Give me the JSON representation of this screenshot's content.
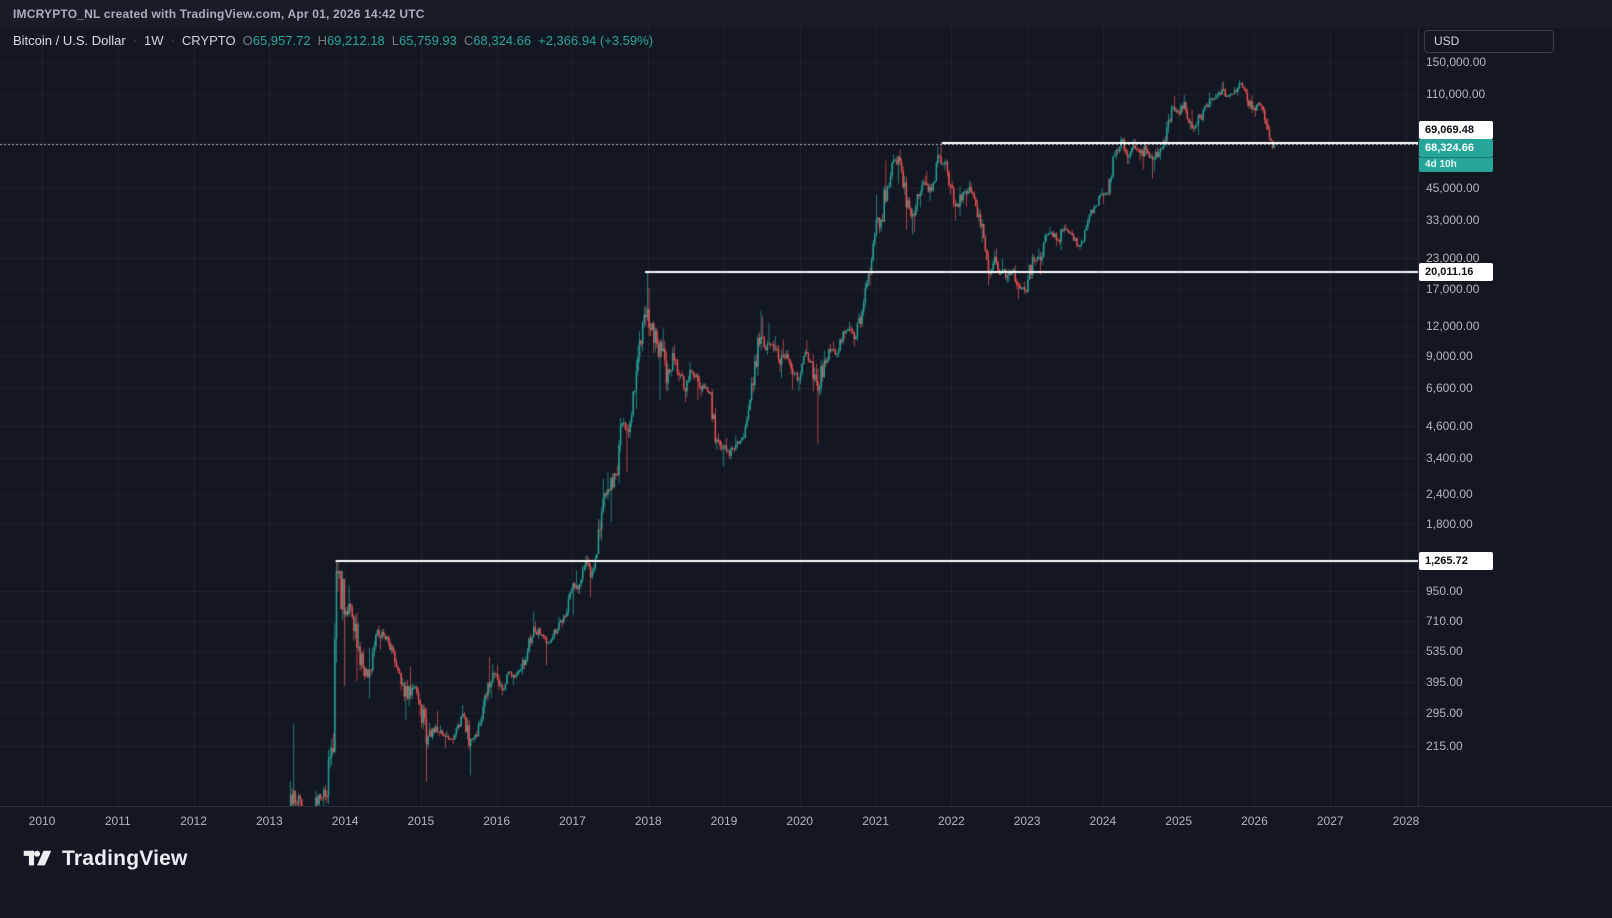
{
  "top_bar": {
    "attribution": "IMCRYPTO_NL created with TradingView.com, Apr 01, 2026 14:42 UTC"
  },
  "legend": {
    "symbol": "Bitcoin / U.S. Dollar",
    "separator": "·",
    "interval": "1W",
    "exchange": "CRYPTO",
    "ohlc": [
      {
        "k": "O",
        "v": "65,957.72"
      },
      {
        "k": "H",
        "v": "69,212.18"
      },
      {
        "k": "L",
        "v": "65,759.93"
      },
      {
        "k": "C",
        "v": "68,324.66"
      }
    ],
    "change": "+2,366.94 (+3.59%)"
  },
  "currency_button": {
    "label": "USD"
  },
  "logo": {
    "text": "TradingView"
  },
  "colors": {
    "bg": "#131722",
    "panel": "#171c27",
    "up": "#26a69a",
    "down": "#ef5350",
    "grid": "rgba(240,243,250,0.06)",
    "axis_text": "#b2b5be",
    "muted": "#787b86",
    "white_line": "#ffffff",
    "last_price_line": "rgba(205,210,220,0.85)"
  },
  "price_badges": [
    {
      "text": "69,069.48",
      "value": 69069.48,
      "style": "white"
    },
    {
      "text": "68,324.66",
      "value": 68324.66,
      "style": "accent"
    },
    {
      "text": "4d 10h",
      "value": 68324.66,
      "style": "countdown"
    },
    {
      "text": "20,011.16",
      "value": 20011.16,
      "style": "white"
    },
    {
      "text": "1,265.72",
      "value": 1265.72,
      "style": "white"
    }
  ],
  "chart_data": {
    "type": "candlestick",
    "title": "Bitcoin / U.S. Dollar · 1W · CRYPTO",
    "scale": "log",
    "legend_position": "top-left",
    "grid": true,
    "x_ticks": [
      {
        "t": "2010",
        "v": 2010
      },
      {
        "t": "2011",
        "v": 2011
      },
      {
        "t": "2012",
        "v": 2012
      },
      {
        "t": "2013",
        "v": 2013
      },
      {
        "t": "2014",
        "v": 2014
      },
      {
        "t": "2015",
        "v": 2015
      },
      {
        "t": "2016",
        "v": 2016
      },
      {
        "t": "2017",
        "v": 2017
      },
      {
        "t": "2018",
        "v": 2018
      },
      {
        "t": "2019",
        "v": 2019
      },
      {
        "t": "2020",
        "v": 2020
      },
      {
        "t": "2021",
        "v": 2021
      },
      {
        "t": "2022",
        "v": 2022
      },
      {
        "t": "2023",
        "v": 2023
      },
      {
        "t": "2024",
        "v": 2024
      },
      {
        "t": "2025",
        "v": 2025
      },
      {
        "t": "2026",
        "v": 2026
      },
      {
        "t": "2027",
        "v": 2027
      },
      {
        "t": "2028",
        "v": 2028
      }
    ],
    "y_ticks": [
      {
        "t": "150,000.00",
        "v": 150000
      },
      {
        "t": "110,000.00",
        "v": 110000
      },
      {
        "t": "45,000.00",
        "v": 45000
      },
      {
        "t": "33,000.00",
        "v": 33000
      },
      {
        "t": "23,000.00",
        "v": 23000
      },
      {
        "t": "17,000.00",
        "v": 17000
      },
      {
        "t": "12,000.00",
        "v": 12000
      },
      {
        "t": "9,000.00",
        "v": 9000
      },
      {
        "t": "6,600.00",
        "v": 6600
      },
      {
        "t": "4,600.00",
        "v": 4600
      },
      {
        "t": "3,400.00",
        "v": 3400
      },
      {
        "t": "2,400.00",
        "v": 2400
      },
      {
        "t": "1,800.00",
        "v": 1800
      },
      {
        "t": "950.00",
        "v": 950
      },
      {
        "t": "710.00",
        "v": 710
      },
      {
        "t": "535.00",
        "v": 535
      },
      {
        "t": "395.00",
        "v": 395
      },
      {
        "t": "295.00",
        "v": 295
      },
      {
        "t": "215.00",
        "v": 215
      }
    ],
    "first_open": 93,
    "monthly_hlc": [
      [
        "2013-04",
        266,
        50,
        140
      ],
      [
        "2013-05",
        140,
        79,
        129
      ],
      [
        "2013-06",
        130,
        88,
        97
      ],
      [
        "2013-07",
        110,
        65,
        106
      ],
      [
        "2013-08",
        140,
        92,
        135
      ],
      [
        "2013-09",
        147,
        110,
        133
      ],
      [
        "2013-10",
        230,
        123,
        211
      ],
      [
        "2013-11",
        1265,
        200,
        1120
      ],
      [
        "2013-12",
        1150,
        382,
        755
      ],
      [
        "2014-01",
        1000,
        740,
        815
      ],
      [
        "2014-02",
        835,
        400,
        550
      ],
      [
        "2014-03",
        700,
        420,
        455
      ],
      [
        "2014-04",
        550,
        340,
        445
      ],
      [
        "2014-05",
        630,
        420,
        625
      ],
      [
        "2014-06",
        680,
        540,
        640
      ],
      [
        "2014-07",
        660,
        560,
        580
      ],
      [
        "2014-08",
        600,
        455,
        480
      ],
      [
        "2014-09",
        495,
        365,
        388
      ],
      [
        "2014-10",
        412,
        275,
        338
      ],
      [
        "2014-11",
        460,
        315,
        375
      ],
      [
        "2014-12",
        384,
        285,
        318
      ],
      [
        "2015-01",
        321,
        152,
        218
      ],
      [
        "2015-02",
        268,
        210,
        254
      ],
      [
        "2015-03",
        300,
        236,
        244
      ],
      [
        "2015-04",
        262,
        210,
        236
      ],
      [
        "2015-05",
        248,
        227,
        230
      ],
      [
        "2015-06",
        268,
        219,
        263
      ],
      [
        "2015-07",
        318,
        255,
        284
      ],
      [
        "2015-08",
        285,
        162,
        230
      ],
      [
        "2015-09",
        248,
        223,
        236
      ],
      [
        "2015-10",
        335,
        235,
        314
      ],
      [
        "2015-11",
        504,
        295,
        377
      ],
      [
        "2015-12",
        470,
        340,
        430
      ],
      [
        "2016-01",
        465,
        350,
        368
      ],
      [
        "2016-02",
        440,
        365,
        437
      ],
      [
        "2016-03",
        440,
        385,
        416
      ],
      [
        "2016-04",
        470,
        410,
        448
      ],
      [
        "2016-05",
        550,
        425,
        531
      ],
      [
        "2016-06",
        780,
        520,
        672
      ],
      [
        "2016-07",
        705,
        600,
        624
      ],
      [
        "2016-08",
        625,
        465,
        575
      ],
      [
        "2016-09",
        630,
        565,
        608
      ],
      [
        "2016-10",
        740,
        598,
        700
      ],
      [
        "2016-11",
        755,
        670,
        742
      ],
      [
        "2016-12",
        980,
        740,
        963
      ],
      [
        "2017-01",
        1150,
        750,
        965
      ],
      [
        "2017-02",
        1220,
        920,
        1190
      ],
      [
        "2017-03",
        1330,
        890,
        1080
      ],
      [
        "2017-04",
        1350,
        1060,
        1347
      ],
      [
        "2017-05",
        2780,
        1350,
        2300
      ],
      [
        "2017-06",
        2980,
        2100,
        2480
      ],
      [
        "2017-07",
        2920,
        1830,
        2875
      ],
      [
        "2017-08",
        4980,
        2650,
        4735
      ],
      [
        "2017-09",
        4980,
        2950,
        4340
      ],
      [
        "2017-10",
        6480,
        4100,
        6450
      ],
      [
        "2017-11",
        11400,
        5400,
        10100
      ],
      [
        "2017-12",
        20010,
        9400,
        14100
      ],
      [
        "2018-01",
        17200,
        9200,
        10200
      ],
      [
        "2018-02",
        11790,
        5920,
        10300
      ],
      [
        "2018-03",
        11700,
        6430,
        6930
      ],
      [
        "2018-04",
        9760,
        6420,
        9240
      ],
      [
        "2018-05",
        9990,
        7040,
        7490
      ],
      [
        "2018-06",
        7750,
        5780,
        6400
      ],
      [
        "2018-07",
        8500,
        6070,
        7730
      ],
      [
        "2018-08",
        7760,
        5880,
        7030
      ],
      [
        "2018-09",
        7410,
        6100,
        6630
      ],
      [
        "2018-10",
        6940,
        6200,
        6340
      ],
      [
        "2018-11",
        6550,
        3650,
        4030
      ],
      [
        "2018-12",
        4300,
        3130,
        3740
      ],
      [
        "2019-01",
        4100,
        3350,
        3460
      ],
      [
        "2019-02",
        4190,
        3330,
        3850
      ],
      [
        "2019-03",
        4140,
        3740,
        4100
      ],
      [
        "2019-04",
        5650,
        4100,
        5320
      ],
      [
        "2019-05",
        9070,
        5330,
        8560
      ],
      [
        "2019-06",
        13880,
        7450,
        10800
      ],
      [
        "2019-07",
        13130,
        9070,
        10090
      ],
      [
        "2019-08",
        12320,
        9320,
        9590
      ],
      [
        "2019-09",
        10900,
        7700,
        8280
      ],
      [
        "2019-10",
        10540,
        7290,
        9150
      ],
      [
        "2019-11",
        9520,
        6520,
        7550
      ],
      [
        "2019-12",
        7740,
        6430,
        7190
      ],
      [
        "2020-01",
        9570,
        6850,
        9350
      ],
      [
        "2020-02",
        10500,
        8400,
        8540
      ],
      [
        "2020-03",
        9200,
        3850,
        6440
      ],
      [
        "2020-04",
        9460,
        6150,
        8620
      ],
      [
        "2020-05",
        10070,
        8100,
        9450
      ],
      [
        "2020-06",
        10380,
        8830,
        9140
      ],
      [
        "2020-07",
        11450,
        8900,
        11350
      ],
      [
        "2020-08",
        12480,
        10550,
        11650
      ],
      [
        "2020-09",
        12050,
        9830,
        10780
      ],
      [
        "2020-10",
        14100,
        10380,
        13800
      ],
      [
        "2020-11",
        19900,
        13200,
        19700
      ],
      [
        "2020-12",
        29300,
        17600,
        29000
      ],
      [
        "2021-01",
        42000,
        28100,
        33100
      ],
      [
        "2021-02",
        58400,
        32300,
        45200
      ],
      [
        "2021-03",
        61800,
        45000,
        58800
      ],
      [
        "2021-04",
        64900,
        46900,
        57800
      ],
      [
        "2021-05",
        59600,
        30000,
        37300
      ],
      [
        "2021-06",
        41300,
        28800,
        35000
      ],
      [
        "2021-07",
        42400,
        29300,
        41500
      ],
      [
        "2021-08",
        50500,
        37300,
        47100
      ],
      [
        "2021-09",
        52900,
        39600,
        43800
      ],
      [
        "2021-10",
        67000,
        43300,
        61300
      ],
      [
        "2021-11",
        69069,
        53300,
        57000
      ],
      [
        "2021-12",
        59100,
        42000,
        46200
      ],
      [
        "2022-01",
        47900,
        32900,
        38500
      ],
      [
        "2022-02",
        45800,
        34300,
        43200
      ],
      [
        "2022-03",
        48200,
        37600,
        45500
      ],
      [
        "2022-04",
        47450,
        37600,
        37650
      ],
      [
        "2022-05",
        40000,
        26700,
        31800
      ],
      [
        "2022-06",
        31900,
        17600,
        19900
      ],
      [
        "2022-07",
        24600,
        18800,
        23300
      ],
      [
        "2022-08",
        25200,
        19550,
        20050
      ],
      [
        "2022-09",
        22800,
        18100,
        19400
      ],
      [
        "2022-10",
        21000,
        18200,
        20500
      ],
      [
        "2022-11",
        21450,
        15480,
        17160
      ],
      [
        "2022-12",
        18350,
        16250,
        16550
      ],
      [
        "2023-01",
        23950,
        16500,
        23100
      ],
      [
        "2023-02",
        25250,
        21350,
        23150
      ],
      [
        "2023-03",
        29100,
        19550,
        28480
      ],
      [
        "2023-04",
        31000,
        27000,
        29250
      ],
      [
        "2023-05",
        29800,
        25800,
        27200
      ],
      [
        "2023-06",
        31400,
        24800,
        30470
      ],
      [
        "2023-07",
        31800,
        28850,
        29230
      ],
      [
        "2023-08",
        30200,
        25350,
        25930
      ],
      [
        "2023-09",
        27450,
        24900,
        26960
      ],
      [
        "2023-10",
        35000,
        26500,
        34650
      ],
      [
        "2023-11",
        38400,
        34100,
        37700
      ],
      [
        "2023-12",
        44700,
        38000,
        42270
      ],
      [
        "2024-01",
        48970,
        38500,
        42580
      ],
      [
        "2024-02",
        63900,
        41900,
        61200
      ],
      [
        "2024-03",
        73800,
        59000,
        71300
      ],
      [
        "2024-04",
        72800,
        56500,
        60640
      ],
      [
        "2024-05",
        71950,
        56550,
        67500
      ],
      [
        "2024-06",
        71900,
        58400,
        62700
      ],
      [
        "2024-07",
        70000,
        53500,
        64600
      ],
      [
        "2024-08",
        65600,
        49000,
        58970
      ],
      [
        "2024-09",
        66500,
        52550,
        63300
      ],
      [
        "2024-10",
        73600,
        58900,
        70200
      ],
      [
        "2024-11",
        99600,
        66800,
        96400
      ],
      [
        "2024-12",
        108300,
        91200,
        93400
      ],
      [
        "2025-01",
        109400,
        89200,
        102400
      ],
      [
        "2025-02",
        102500,
        78200,
        84350
      ],
      [
        "2025-03",
        95000,
        76600,
        82550
      ],
      [
        "2025-04",
        95800,
        74500,
        94200
      ],
      [
        "2025-05",
        112000,
        93300,
        104600
      ],
      [
        "2025-06",
        110500,
        98300,
        107100
      ],
      [
        "2025-07",
        123200,
        105100,
        115700
      ],
      [
        "2025-08",
        124500,
        107300,
        108200
      ],
      [
        "2025-09",
        118000,
        106000,
        114500
      ],
      [
        "2025-10",
        126200,
        108800,
        122500
      ],
      [
        "2025-11",
        124000,
        98500,
        103500
      ],
      [
        "2025-12",
        109000,
        92000,
        96500
      ],
      [
        "2026-01",
        103000,
        88500,
        99000
      ],
      [
        "2026-02",
        100500,
        78500,
        82500
      ],
      [
        "2026-03",
        87000,
        64800,
        66000
      ]
    ],
    "last_week": {
      "date": "2026-04",
      "o": 65957.72,
      "h": 69212.18,
      "l": 65759.93,
      "c": 68324.66
    },
    "rays": [
      {
        "price": 69069.48,
        "from": 2021.875
      },
      {
        "price": 20011.16,
        "from": 2017.958
      },
      {
        "price": 1265.72,
        "from": 2013.875
      }
    ],
    "last_price_line": 68324.66
  }
}
